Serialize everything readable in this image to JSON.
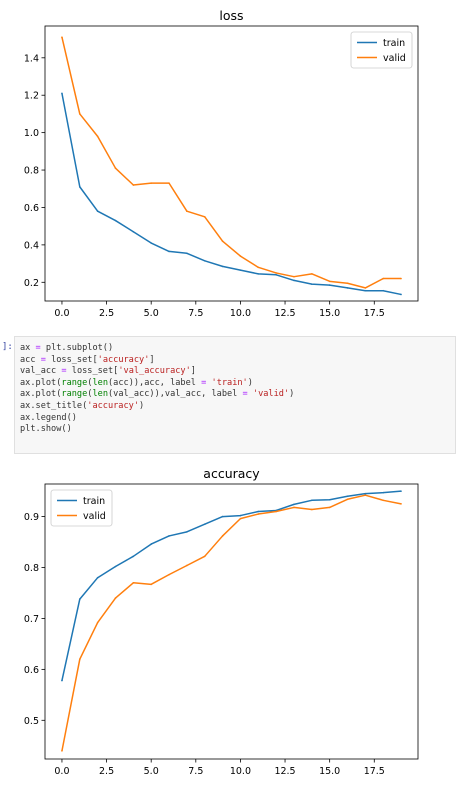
{
  "notebook": {
    "prompt": "]:",
    "code_lines": [
      [
        {
          "t": "ax "
        },
        {
          "t": "=",
          "c": "t-op"
        },
        {
          "t": " plt.subplot()"
        }
      ],
      [
        {
          "t": "acc "
        },
        {
          "t": "=",
          "c": "t-op"
        },
        {
          "t": " loss_set["
        },
        {
          "t": "'accuracy'",
          "c": "t-str"
        },
        {
          "t": "]"
        }
      ],
      [
        {
          "t": "val_acc "
        },
        {
          "t": "=",
          "c": "t-op"
        },
        {
          "t": " loss_set["
        },
        {
          "t": "'val_accuracy'",
          "c": "t-str"
        },
        {
          "t": "]"
        }
      ],
      [
        {
          "t": "ax.plot("
        },
        {
          "t": "range",
          "c": "t-kw"
        },
        {
          "t": "("
        },
        {
          "t": "len",
          "c": "t-kw"
        },
        {
          "t": "(acc)),acc, label "
        },
        {
          "t": "=",
          "c": "t-op"
        },
        {
          "t": " "
        },
        {
          "t": "'train'",
          "c": "t-str"
        },
        {
          "t": ")"
        }
      ],
      [
        {
          "t": "ax.plot("
        },
        {
          "t": "range",
          "c": "t-kw"
        },
        {
          "t": "("
        },
        {
          "t": "len",
          "c": "t-kw"
        },
        {
          "t": "(val_acc)),val_acc, label "
        },
        {
          "t": "=",
          "c": "t-op"
        },
        {
          "t": " "
        },
        {
          "t": "'valid'",
          "c": "t-str"
        },
        {
          "t": ")"
        }
      ],
      [
        {
          "t": "ax.set_title("
        },
        {
          "t": "'accuracy'",
          "c": "t-str"
        },
        {
          "t": ")"
        }
      ],
      [
        {
          "t": "ax.legend()"
        }
      ],
      [
        {
          "t": "plt.show()"
        }
      ]
    ]
  },
  "chart_data": [
    {
      "type": "line",
      "title": "loss",
      "xlabel": "",
      "ylabel": "",
      "x": [
        0,
        1,
        2,
        3,
        4,
        5,
        6,
        7,
        8,
        9,
        10,
        11,
        12,
        13,
        14,
        15,
        16,
        17,
        18,
        19
      ],
      "xlim": [
        -0.95,
        19.95
      ],
      "ylim": [
        0.1,
        1.57
      ],
      "xticks": [
        0.0,
        2.5,
        5.0,
        7.5,
        10.0,
        12.5,
        15.0,
        17.5
      ],
      "xtick_labels": [
        "0.0",
        "2.5",
        "5.0",
        "7.5",
        "10.0",
        "12.5",
        "15.0",
        "17.5"
      ],
      "yticks": [
        0.2,
        0.4,
        0.6,
        0.8,
        1.0,
        1.2,
        1.4
      ],
      "ytick_labels": [
        "0.2",
        "0.4",
        "0.6",
        "0.8",
        "1.0",
        "1.2",
        "1.4"
      ],
      "legend_position": "top-right",
      "grid": false,
      "series": [
        {
          "name": "train",
          "color": "#1f77b4",
          "values": [
            1.21,
            0.71,
            0.58,
            0.53,
            0.47,
            0.41,
            0.365,
            0.355,
            0.315,
            0.285,
            0.265,
            0.245,
            0.24,
            0.21,
            0.19,
            0.185,
            0.17,
            0.155,
            0.155,
            0.135
          ]
        },
        {
          "name": "valid",
          "color": "#ff7f0e",
          "values": [
            1.51,
            1.1,
            0.98,
            0.81,
            0.72,
            0.73,
            0.73,
            0.58,
            0.55,
            0.42,
            0.34,
            0.28,
            0.25,
            0.23,
            0.245,
            0.205,
            0.195,
            0.17,
            0.22,
            0.22
          ]
        }
      ]
    },
    {
      "type": "line",
      "title": "accuracy",
      "xlabel": "",
      "ylabel": "",
      "x": [
        0,
        1,
        2,
        3,
        4,
        5,
        6,
        7,
        8,
        9,
        10,
        11,
        12,
        13,
        14,
        15,
        16,
        17,
        18,
        19
      ],
      "xlim": [
        -0.95,
        19.95
      ],
      "ylim": [
        0.424,
        0.964
      ],
      "xticks": [
        0.0,
        2.5,
        5.0,
        7.5,
        10.0,
        12.5,
        15.0,
        17.5
      ],
      "xtick_labels": [
        "0.0",
        "2.5",
        "5.0",
        "7.5",
        "10.0",
        "12.5",
        "15.0",
        "17.5"
      ],
      "yticks": [
        0.5,
        0.6,
        0.7,
        0.8,
        0.9
      ],
      "ytick_labels": [
        "0.5",
        "0.6",
        "0.7",
        "0.8",
        "0.9"
      ],
      "legend_position": "top-left",
      "grid": false,
      "series": [
        {
          "name": "train",
          "color": "#1f77b4",
          "values": [
            0.578,
            0.738,
            0.78,
            0.802,
            0.822,
            0.846,
            0.862,
            0.87,
            0.885,
            0.9,
            0.902,
            0.91,
            0.912,
            0.924,
            0.932,
            0.933,
            0.94,
            0.945,
            0.947,
            0.95
          ]
        },
        {
          "name": "valid",
          "color": "#ff7f0e",
          "values": [
            0.44,
            0.62,
            0.692,
            0.74,
            0.77,
            0.767,
            0.786,
            0.804,
            0.822,
            0.862,
            0.896,
            0.905,
            0.91,
            0.918,
            0.914,
            0.918,
            0.934,
            0.942,
            0.932,
            0.925
          ]
        }
      ]
    }
  ]
}
